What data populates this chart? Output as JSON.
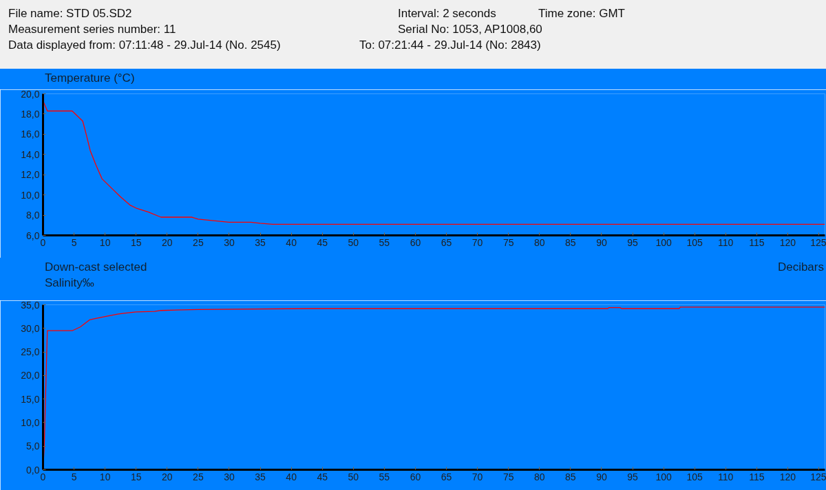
{
  "chart_data": [
    {
      "type": "line",
      "ylabel": "Temperature (°C)",
      "annotations": [
        "File name: STD 05.SD2",
        "Measurement series number: 11",
        "Data displayed from: 07:11:48 - 29.Jul-14 (No. 2545)",
        "To: 07:21:44 - 29.Jul-14 (No: 2843)",
        "Interval: 2 seconds",
        "Time zone: GMT",
        "Serial No: 1053, AP1008,60"
      ],
      "x": [
        0,
        0.7,
        4.7,
        6.4,
        7,
        7.6,
        8.5,
        9.5,
        11,
        12.5,
        14,
        15,
        17,
        19,
        24,
        25,
        30,
        33.5,
        35,
        37,
        126
      ],
      "series": [
        {
          "color": "#ff0000",
          "values": [
            19.3,
            18.3,
            18.3,
            17.3,
            15.9,
            14.4,
            13.0,
            11.6,
            10.7,
            9.8,
            9.0,
            8.7,
            8.3,
            7.8,
            7.8,
            7.6,
            7.3,
            7.3,
            7.2,
            7.1,
            7.1
          ]
        }
      ],
      "xlim": [
        0,
        126
      ],
      "xticks": [
        0,
        5,
        10,
        15,
        20,
        25,
        30,
        35,
        40,
        45,
        50,
        55,
        60,
        65,
        70,
        75,
        80,
        85,
        90,
        95,
        100,
        105,
        110,
        115,
        120,
        125
      ],
      "ylim": [
        6,
        20
      ],
      "yticks": [
        {
          "value": 6,
          "label": "6,0"
        },
        {
          "value": 8,
          "label": "8,0"
        },
        {
          "value": 10,
          "label": "10,0"
        },
        {
          "value": 12,
          "label": "12,0"
        },
        {
          "value": 14,
          "label": "14,0"
        },
        {
          "value": 16,
          "label": "16,0"
        },
        {
          "value": 18,
          "label": "18,0"
        },
        {
          "value": 20,
          "label": "20,0"
        }
      ],
      "grid": false,
      "marker": "none",
      "line_style": "solid"
    },
    {
      "type": "line",
      "ylabel": "Salinity‰",
      "xlabel": "Decibars",
      "annotations": [
        "Down-cast selected"
      ],
      "x": [
        0,
        0.2,
        0.4,
        0.6,
        0.7,
        4.7,
        6,
        7.5,
        8.5,
        10,
        12,
        13,
        15,
        18,
        19,
        25,
        43,
        91,
        91.2,
        93,
        93.2,
        102.5,
        102.7,
        126
      ],
      "series": [
        {
          "color": "#ff0000",
          "values": [
            0,
            5,
            15,
            25,
            29.5,
            29.5,
            30.3,
            31.8,
            32.1,
            32.5,
            33,
            33.2,
            33.5,
            33.6,
            33.8,
            34.0,
            34.2,
            34.2,
            34.4,
            34.4,
            34.2,
            34.2,
            34.5,
            34.5
          ]
        }
      ],
      "xlim": [
        0,
        126
      ],
      "xticks": [
        0,
        5,
        10,
        15,
        20,
        25,
        30,
        35,
        40,
        45,
        50,
        55,
        60,
        65,
        70,
        75,
        80,
        85,
        90,
        95,
        100,
        105,
        110,
        115,
        120,
        125
      ],
      "ylim": [
        0,
        35
      ],
      "yticks": [
        {
          "value": 0,
          "label": "0,0"
        },
        {
          "value": 5,
          "label": "5,0"
        },
        {
          "value": 10,
          "label": "10,0"
        },
        {
          "value": 15,
          "label": "15,0"
        },
        {
          "value": 20,
          "label": "20,0"
        },
        {
          "value": 25,
          "label": "25,0"
        },
        {
          "value": 30,
          "label": "30,0"
        },
        {
          "value": 35,
          "label": "35,0"
        }
      ],
      "grid": false,
      "marker": "none",
      "line_style": "solid"
    }
  ]
}
